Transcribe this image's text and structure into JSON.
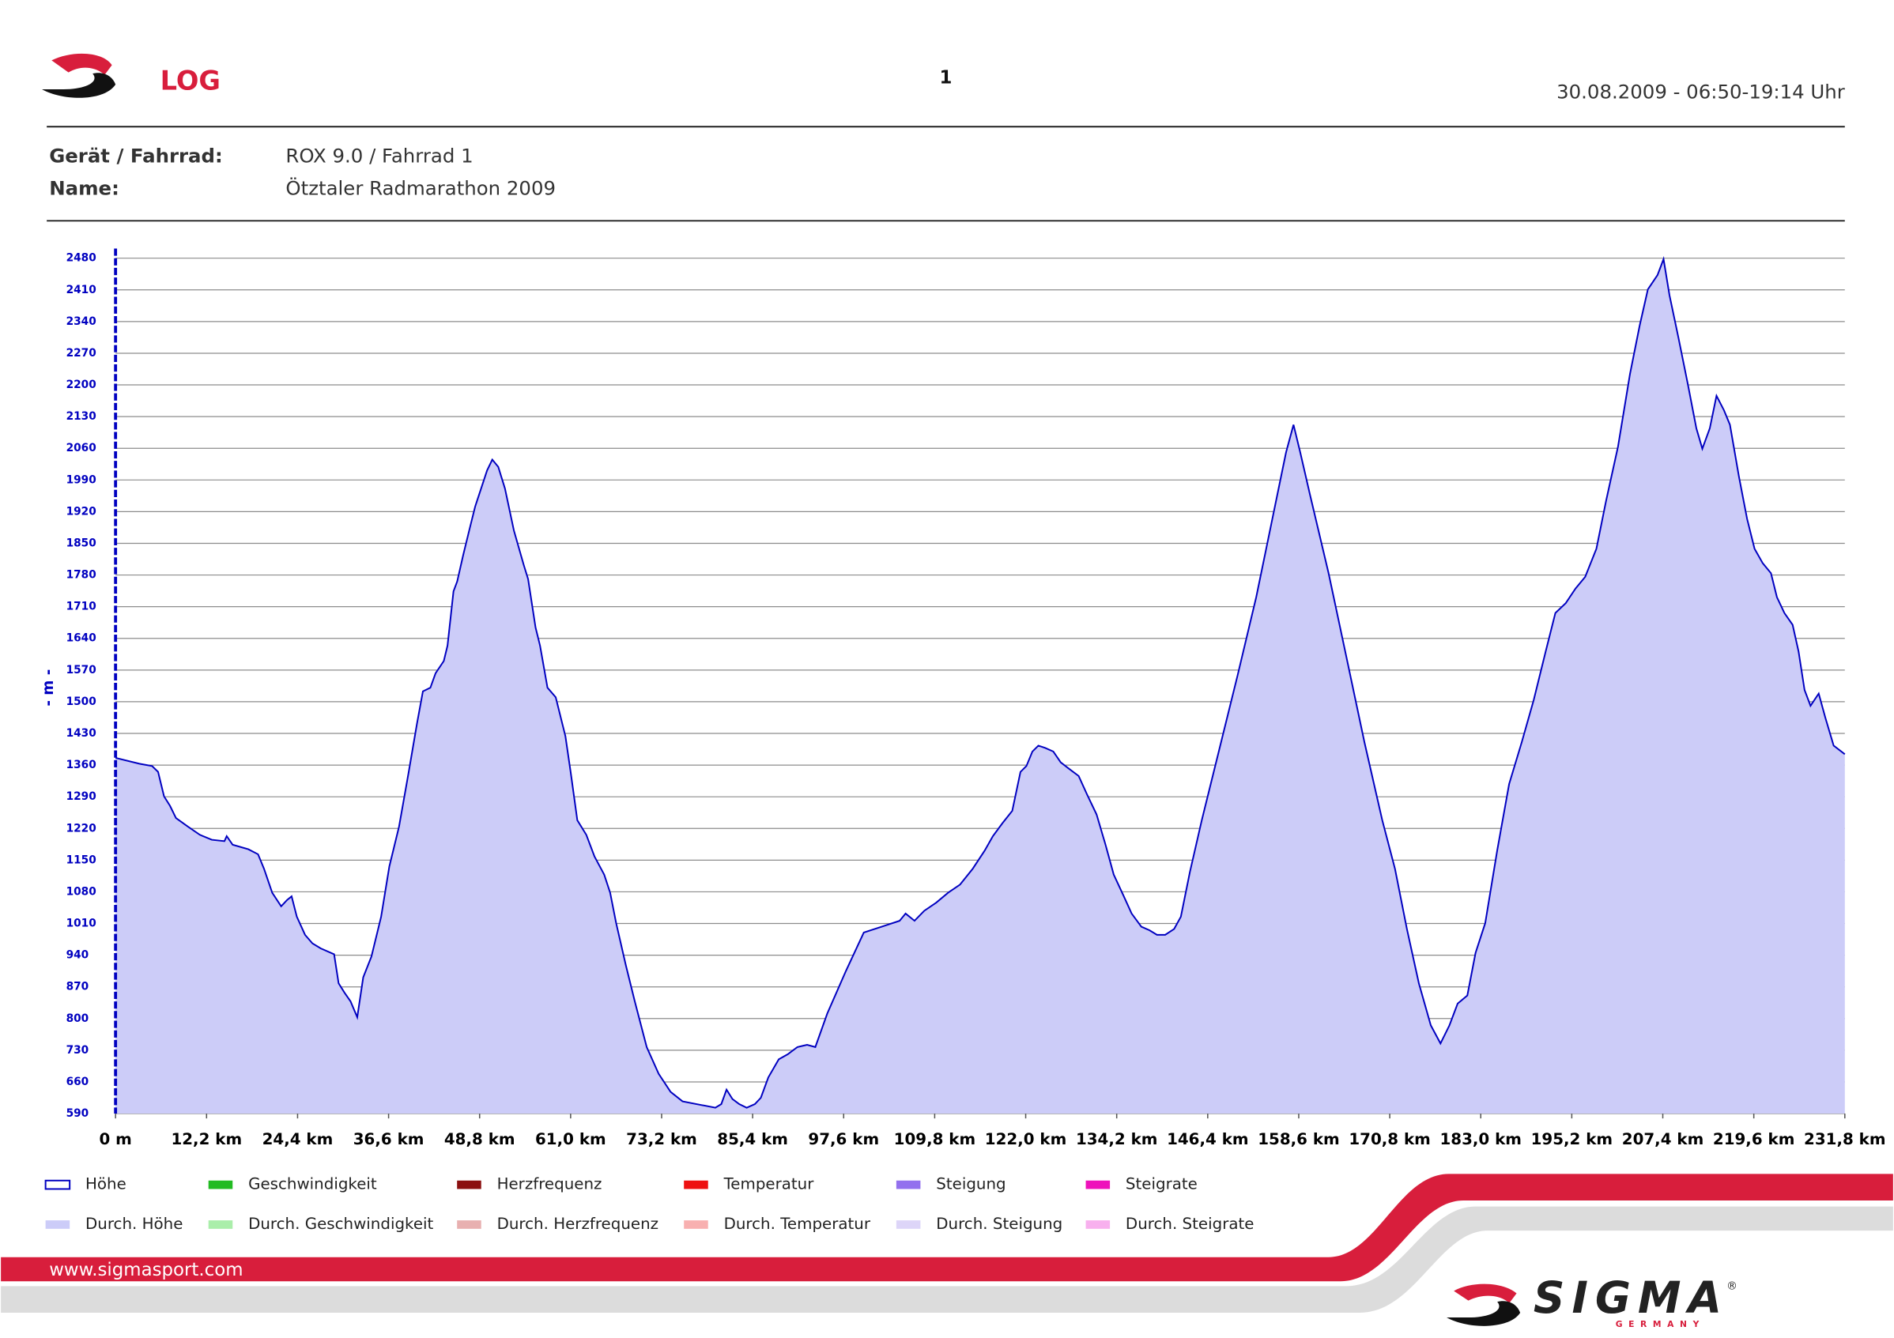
{
  "header": {
    "section": "LOG",
    "page": "1",
    "date": "30.08.2009 - 06:50-19:14 Uhr"
  },
  "fields": [
    {
      "label": "Gerät / Fahrrad:",
      "value": "ROX 9.0 / Fahrrad 1"
    },
    {
      "label": "Name:",
      "value": "Ötztaler Radmarathon 2009"
    }
  ],
  "chart_data": {
    "type": "area",
    "ylabel": "- m -",
    "x": [
      0,
      3.2,
      4.9,
      5.7,
      6.5,
      7.3,
      8.1,
      9.7,
      11.3,
      12.9,
      14.6,
      14.9,
      15.7,
      17.8,
      19.1,
      19.9,
      21.0,
      22.2,
      23.0,
      23.6,
      24.3,
      25.4,
      26.4,
      27.5,
      29.3,
      29.9,
      30.7,
      31.5,
      32.4,
      33.2,
      34.3,
      35.6,
      36.7,
      38.0,
      39.3,
      40.4,
      41.2,
      42.2,
      42.9,
      44.0,
      44.5,
      45.3,
      45.8,
      46.6,
      47.4,
      48.2,
      49.0,
      49.8,
      50.5,
      51.3,
      52.2,
      53.4,
      54.7,
      55.3,
      56.3,
      56.9,
      57.9,
      59.0,
      60.3,
      61.0,
      61.9,
      63.1,
      64.2,
      65.5,
      66.3,
      67.1,
      68.4,
      69.6,
      71.2,
      72.8,
      74.4,
      76.0,
      78.5,
      80.4,
      81.2,
      81.9,
      82.7,
      83.6,
      84.6,
      85.7,
      86.5,
      87.5,
      88.9,
      90.1,
      91.4,
      92.7,
      93.8,
      95.4,
      97.9,
      100.3,
      102.7,
      105.1,
      105.9,
      107.1,
      108.4,
      110.0,
      111.6,
      113.2,
      114.9,
      116.5,
      117.6,
      118.9,
      120.2,
      121.3,
      122.1,
      122.9,
      123.7,
      124.6,
      125.7,
      126.7,
      127.8,
      129.1,
      130.2,
      131.5,
      132.7,
      133.8,
      135.1,
      136.2,
      137.5,
      138.6,
      139.6,
      140.7,
      141.9,
      142.8,
      144.0,
      145.6,
      148.0,
      150.4,
      152.9,
      155.3,
      156.9,
      157.9,
      158.8,
      160.1,
      162.6,
      165.0,
      167.4,
      169.8,
      171.5,
      173.1,
      174.7,
      176.3,
      177.6,
      178.8,
      179.9,
      181.2,
      182.3,
      183.6,
      185.2,
      186.8,
      188.5,
      190.1,
      191.7,
      193.0,
      194.4,
      195.7,
      197.0,
      198.5,
      199.8,
      201.4,
      203.0,
      204.3,
      205.4,
      206.7,
      207.5,
      208.3,
      209.5,
      210.8,
      211.9,
      212.7,
      213.7,
      214.6,
      215.6,
      216.4,
      217.6,
      218.7,
      219.7,
      220.8,
      221.9,
      222.7,
      223.7,
      224.8,
      225.6,
      226.4,
      227.2,
      228.3,
      229.2,
      230.3,
      231.8
    ],
    "series": [
      {
        "name": "Höhe",
        "color": "#0000c0",
        "fill": "#ccccf8",
        "values": [
          1376,
          1363,
          1358,
          1345,
          1291,
          1270,
          1243,
          1224,
          1206,
          1195,
          1192,
          1203,
          1184,
          1174,
          1163,
          1131,
          1078,
          1048,
          1062,
          1070,
          1025,
          985,
          966,
          955,
          942,
          878,
          857,
          838,
          803,
          891,
          937,
          1025,
          1136,
          1224,
          1345,
          1451,
          1523,
          1531,
          1563,
          1590,
          1624,
          1744,
          1766,
          1824,
          1878,
          1931,
          1971,
          2011,
          2035,
          2019,
          1971,
          1878,
          1803,
          1771,
          1664,
          1624,
          1531,
          1510,
          1424,
          1345,
          1238,
          1206,
          1158,
          1118,
          1078,
          1011,
          918,
          838,
          737,
          678,
          638,
          617,
          609,
          603,
          611,
          643,
          622,
          611,
          603,
          611,
          625,
          670,
          710,
          721,
          737,
          742,
          737,
          811,
          905,
          990,
          1003,
          1016,
          1032,
          1016,
          1038,
          1056,
          1078,
          1096,
          1131,
          1171,
          1203,
          1232,
          1259,
          1345,
          1358,
          1390,
          1403,
          1398,
          1390,
          1366,
          1352,
          1336,
          1296,
          1251,
          1184,
          1118,
          1072,
          1032,
          1003,
          995,
          985,
          985,
          998,
          1025,
          1123,
          1238,
          1398,
          1558,
          1731,
          1923,
          2051,
          2112,
          2051,
          1958,
          1784,
          1598,
          1411,
          1238,
          1131,
          998,
          878,
          785,
          745,
          785,
          833,
          851,
          945,
          1011,
          1171,
          1318,
          1411,
          1504,
          1611,
          1696,
          1718,
          1750,
          1776,
          1838,
          1944,
          2064,
          2224,
          2331,
          2411,
          2443,
          2478,
          2398,
          2304,
          2198,
          2104,
          2059,
          2104,
          2176,
          2144,
          2112,
          1998,
          1904,
          1838,
          1806,
          1784,
          1731,
          1696,
          1670,
          1611,
          1526,
          1491,
          1518,
          1464,
          1403,
          1384
        ]
      }
    ],
    "legend_items": [
      {
        "name": "Geschwindigkeit",
        "color": "#22bb22"
      },
      {
        "name": "Herzfrequenz",
        "color": "#8b1010"
      },
      {
        "name": "Temperatur",
        "color": "#ee1111"
      },
      {
        "name": "Steigung",
        "color": "#9370ee"
      },
      {
        "name": "Steigrate",
        "color": "#ee11bb"
      },
      {
        "name": "Durch. Höhe",
        "color": "#ccccf8"
      },
      {
        "name": "Durch. Geschwindigkeit",
        "color": "#aaeeaa"
      },
      {
        "name": "Durch. Herzfrequenz",
        "color": "#e8b0b0"
      },
      {
        "name": "Durch. Temperatur",
        "color": "#f8b0b0"
      },
      {
        "name": "Durch. Steigung",
        "color": "#ddd5f8"
      },
      {
        "name": "Durch. Steigrate",
        "color": "#f8b0ee"
      }
    ],
    "xlim": [
      0,
      231.8
    ],
    "xticks": [
      {
        "value": 0,
        "label": "0 m"
      },
      {
        "value": 12.2,
        "label": "12,2 km"
      },
      {
        "value": 24.4,
        "label": "24,4 km"
      },
      {
        "value": 36.6,
        "label": "36,6 km"
      },
      {
        "value": 48.8,
        "label": "48,8 km"
      },
      {
        "value": 61,
        "label": "61,0 km"
      },
      {
        "value": 73.2,
        "label": "73,2 km"
      },
      {
        "value": 85.4,
        "label": "85,4 km"
      },
      {
        "value": 97.6,
        "label": "97,6 km"
      },
      {
        "value": 109.8,
        "label": "109,8 km"
      },
      {
        "value": 122,
        "label": "122,0 km"
      },
      {
        "value": 134.2,
        "label": "134,2 km"
      },
      {
        "value": 146.4,
        "label": "146,4 km"
      },
      {
        "value": 158.6,
        "label": "158,6 km"
      },
      {
        "value": 170.8,
        "label": "170,8 km"
      },
      {
        "value": 183,
        "label": "183,0 km"
      },
      {
        "value": 195.2,
        "label": "195,2 km"
      },
      {
        "value": 207.4,
        "label": "207,4 km"
      },
      {
        "value": 219.6,
        "label": "219,6 km"
      },
      {
        "value": 231.8,
        "label": "231,8 km"
      }
    ],
    "ylim": [
      590,
      2480
    ],
    "yticks": [
      590,
      660,
      730,
      800,
      870,
      940,
      1010,
      1080,
      1150,
      1220,
      1290,
      1360,
      1430,
      1500,
      1570,
      1640,
      1710,
      1780,
      1850,
      1920,
      1990,
      2060,
      2130,
      2200,
      2270,
      2340,
      2410,
      2480
    ],
    "grid": true
  },
  "footer": {
    "url": "www.sigmasport.com",
    "brand": "SIGMA",
    "country": "GERMANY",
    "registered": "®"
  }
}
